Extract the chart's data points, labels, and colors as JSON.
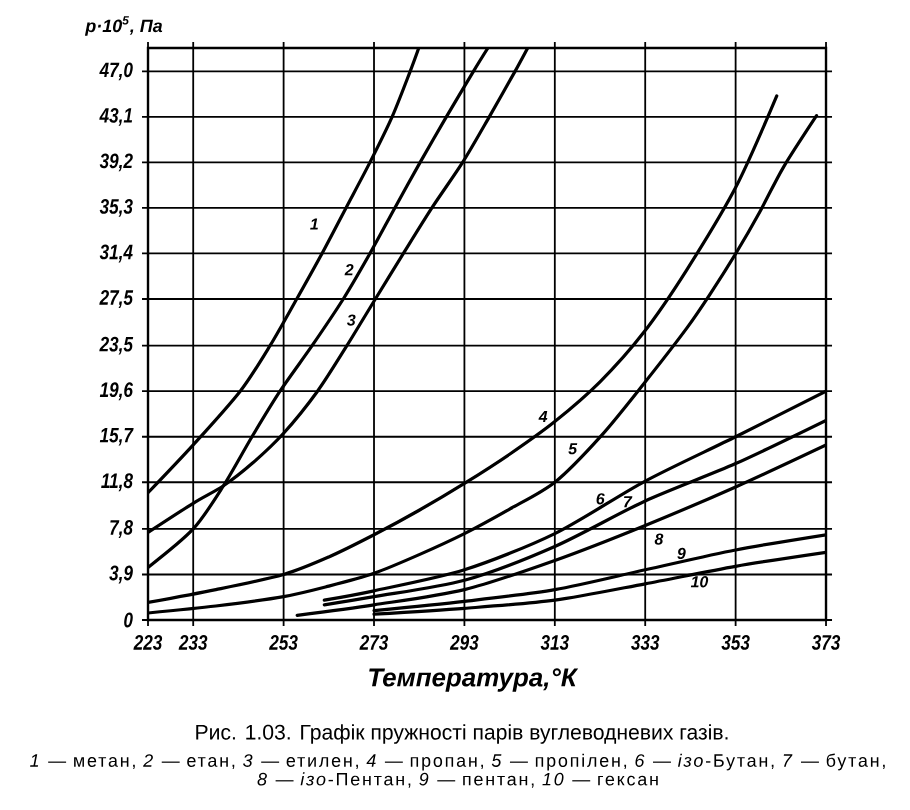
{
  "chart_data": {
    "type": "line",
    "title": "Рис. 1.03. Графік пружності парів вуглеводневих газів.",
    "xlabel": "Температура,°К",
    "ylabel": "p·10$^{5}$, Па",
    "annotations": [
      "*1* — метан, *2* — етан, *3* — етилен, *4* — пропан, *5* — пропілен, *6* — *ізо*-Бутан, *7* — бутан,",
      "*8* — *ізо*-Пентан, *9* — пентан, *10* — гексан"
    ],
    "xlim": [
      223,
      373
    ],
    "ylim": [
      0,
      49
    ],
    "xticks": [
      223,
      233,
      253,
      273,
      293,
      313,
      333,
      353,
      373
    ],
    "yticks": [
      0,
      {
        "value": 3.9,
        "label": "3,9"
      },
      {
        "value": 7.8,
        "label": "7,8"
      },
      {
        "value": 11.8,
        "label": "11,8"
      },
      {
        "value": 15.7,
        "label": "15,7"
      },
      {
        "value": 19.6,
        "label": "19,6"
      },
      {
        "value": 23.5,
        "label": "23,5"
      },
      {
        "value": 27.5,
        "label": "27,5"
      },
      {
        "value": 31.4,
        "label": "31,4"
      },
      {
        "value": 35.3,
        "label": "35,3"
      },
      {
        "value": 39.2,
        "label": "39,2"
      },
      {
        "value": 43.1,
        "label": "43,1"
      },
      {
        "value": 47,
        "label": "47,0"
      }
    ],
    "grid": true,
    "series": [
      {
        "name": "1",
        "color": "#000000",
        "x": [
          223,
          233,
          243.4,
          250,
          255.9,
          261.5,
          266.8,
          272.1,
          277,
          281,
          282.9
        ],
        "values": [
          10.9,
          15.0,
          19.6,
          23.5,
          27.5,
          31.4,
          35.3,
          39.2,
          43.1,
          47.0,
          49.0
        ]
      },
      {
        "name": "2",
        "color": "#000000",
        "x": [
          223,
          233,
          239.7,
          246,
          252.2,
          259.3,
          266.2,
          272.1,
          277.6,
          283.2,
          289,
          295,
          298.2
        ],
        "values": [
          4.5,
          7.8,
          11.5,
          15.7,
          19.6,
          23.5,
          27.5,
          31.4,
          35.3,
          39.2,
          43.1,
          47.0,
          49.0
        ]
      },
      {
        "name": "3",
        "color": "#000000",
        "x": [
          223,
          233,
          239.7,
          246,
          253,
          260.5,
          267,
          273.3,
          279.5,
          285.8,
          292.6,
          298.5,
          304.2,
          307
        ],
        "values": [
          7.5,
          10.0,
          11.5,
          13.4,
          16.0,
          19.6,
          23.5,
          27.5,
          31.4,
          35.3,
          39.2,
          43.1,
          47.0,
          49.0
        ]
      },
      {
        "name": "4",
        "color": "#000000",
        "x": [
          223,
          238,
          253,
          263,
          273,
          283,
          293,
          303,
          313,
          323,
          332.6,
          342.2,
          353.2,
          362.1
        ],
        "values": [
          1.5,
          2.6,
          3.9,
          5.4,
          7.3,
          9.4,
          11.7,
          14.2,
          17.0,
          20.4,
          24.6,
          30.0,
          37.2,
          44.9
        ]
      },
      {
        "name": "5",
        "color": "#000000",
        "x": [
          223,
          238,
          253,
          263,
          273,
          283,
          293,
          303,
          313,
          323.3,
          332.6,
          342.2,
          347.5,
          353.2,
          358.4,
          363.6,
          370.9
        ],
        "values": [
          0.6,
          1.2,
          2.0,
          2.9,
          4.0,
          5.6,
          7.4,
          9.5,
          11.8,
          15.8,
          20.2,
          25.0,
          28.0,
          31.5,
          35.0,
          38.8,
          43.2
        ]
      },
      {
        "name": "6",
        "color": "#000000",
        "x": [
          262,
          273,
          293,
          313,
          333,
          353,
          373
        ],
        "values": [
          1.7,
          2.5,
          4.3,
          7.4,
          11.9,
          15.7,
          19.6
        ]
      },
      {
        "name": "7",
        "color": "#000000",
        "x": [
          262,
          273,
          293,
          313,
          333,
          353,
          373
        ],
        "values": [
          1.3,
          2.0,
          3.4,
          6.3,
          10.2,
          13.4,
          17.1
        ]
      },
      {
        "name": "8",
        "color": "#000000",
        "x": [
          256,
          273,
          293,
          313,
          333,
          353,
          373
        ],
        "values": [
          0.4,
          1.3,
          2.6,
          5.1,
          8.1,
          11.4,
          15.0
        ]
      },
      {
        "name": "9",
        "color": "#000000",
        "x": [
          273,
          293,
          313,
          333,
          353,
          373
        ],
        "values": [
          0.8,
          1.6,
          2.6,
          4.3,
          6.0,
          7.3
        ]
      },
      {
        "name": "10",
        "color": "#000000",
        "x": [
          273,
          293,
          313,
          333,
          353,
          373
        ],
        "values": [
          0.5,
          1.0,
          1.7,
          3.1,
          4.6,
          5.8
        ]
      }
    ]
  }
}
